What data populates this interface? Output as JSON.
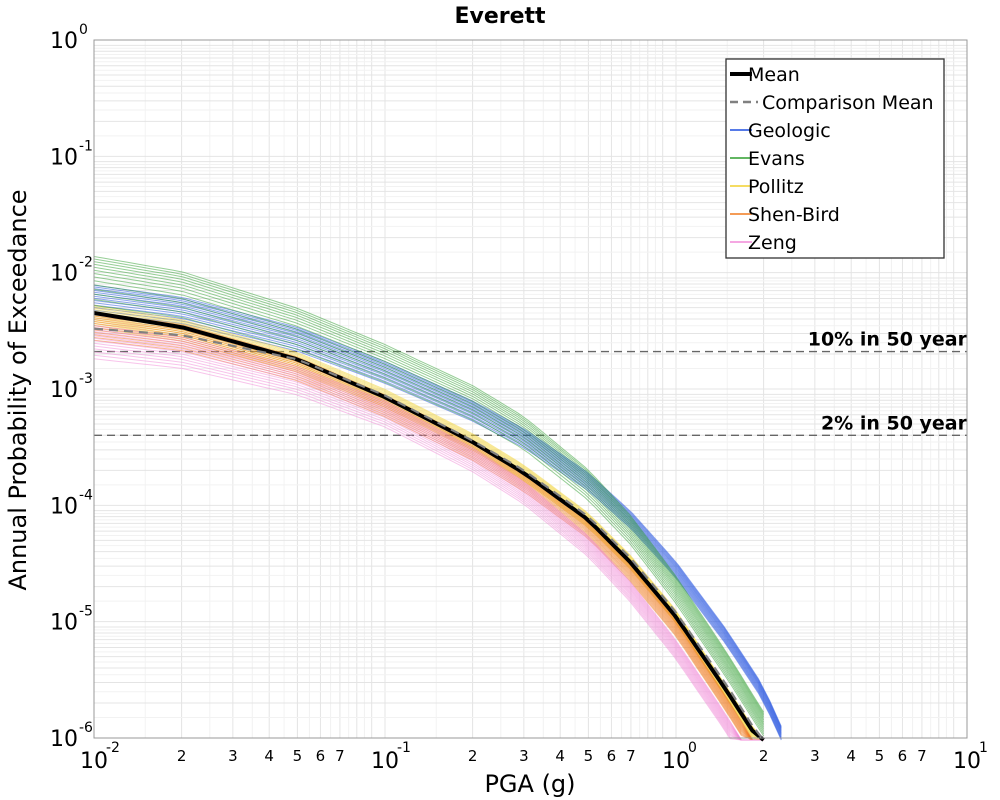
{
  "chart_data": {
    "type": "line",
    "title": "Everett",
    "xlabel": "PGA (g)",
    "ylabel": "Annual Probability of Exceedance",
    "x_scale": "log",
    "y_scale": "log",
    "xlim": [
      0.01,
      10
    ],
    "ylim": [
      1e-06,
      1
    ],
    "grid": true,
    "legend_position": "top-right",
    "x_major_ticks": [
      {
        "value": 0.01,
        "base": "10",
        "exp": "-2"
      },
      {
        "value": 0.1,
        "base": "10",
        "exp": "-1"
      },
      {
        "value": 1,
        "base": "10",
        "exp": "0"
      },
      {
        "value": 10,
        "base": "10",
        "exp": "1"
      }
    ],
    "x_minor_ticks": [
      {
        "value": 0.02,
        "label": "2"
      },
      {
        "value": 0.03,
        "label": "3"
      },
      {
        "value": 0.04,
        "label": "4"
      },
      {
        "value": 0.05,
        "label": "5"
      },
      {
        "value": 0.06,
        "label": "6"
      },
      {
        "value": 0.07,
        "label": "7"
      },
      {
        "value": 0.2,
        "label": "2"
      },
      {
        "value": 0.3,
        "label": "3"
      },
      {
        "value": 0.4,
        "label": "4"
      },
      {
        "value": 0.5,
        "label": "5"
      },
      {
        "value": 0.6,
        "label": "6"
      },
      {
        "value": 0.7,
        "label": "7"
      },
      {
        "value": 2,
        "label": "2"
      },
      {
        "value": 3,
        "label": "3"
      },
      {
        "value": 4,
        "label": "4"
      },
      {
        "value": 5,
        "label": "5"
      },
      {
        "value": 6,
        "label": "6"
      },
      {
        "value": 7,
        "label": "7"
      }
    ],
    "y_major_ticks": [
      {
        "value": 1,
        "base": "10",
        "exp": "0"
      },
      {
        "value": 0.1,
        "base": "10",
        "exp": "-1"
      },
      {
        "value": 0.01,
        "base": "10",
        "exp": "-2"
      },
      {
        "value": 0.001,
        "base": "10",
        "exp": "-3"
      },
      {
        "value": 0.0001,
        "base": "10",
        "exp": "-4"
      },
      {
        "value": 1e-05,
        "base": "10",
        "exp": "-5"
      },
      {
        "value": 1e-06,
        "base": "10",
        "exp": "-6"
      }
    ],
    "reference_lines": [
      {
        "label": "10% in 50 year",
        "y": 0.0021
      },
      {
        "label": "2% in 50 year",
        "y": 0.0004
      }
    ],
    "series": [
      {
        "name": "Mean",
        "color": "#000000",
        "style": "solid-thick",
        "x": [
          0.01,
          0.02,
          0.05,
          0.1,
          0.2,
          0.3,
          0.5,
          0.7,
          1.0,
          1.5,
          2.0
        ],
        "y": [
          0.0045,
          0.0034,
          0.0018,
          0.00085,
          0.00035,
          0.00019,
          7.5e-05,
          3.2e-05,
          1.1e-05,
          2.5e-06,
          8.2e-07
        ]
      },
      {
        "name": "Comparison Mean",
        "color": "#808080",
        "style": "dashed",
        "x": [
          0.01,
          0.02,
          0.05,
          0.1,
          0.2,
          0.3,
          0.5,
          0.7,
          1.0,
          1.5,
          2.0
        ],
        "y": [
          0.0033,
          0.0029,
          0.0018,
          0.00088,
          0.00036,
          0.0002,
          8e-05,
          3.5e-05,
          1.2e-05,
          2.8e-06,
          9e-07
        ]
      },
      {
        "name": "Geologic",
        "color": "#1f4fe0",
        "style": "band",
        "x": [
          0.01,
          0.02,
          0.05,
          0.1,
          0.2,
          0.3,
          0.5,
          0.7,
          1.0,
          1.5,
          2.0,
          2.3
        ],
        "y": [
          0.006,
          0.0048,
          0.0027,
          0.0014,
          0.00065,
          0.00038,
          0.00016,
          7.5e-05,
          2.8e-05,
          7.2e-06,
          2.4e-06,
          1.1e-06
        ]
      },
      {
        "name": "Evans",
        "color": "#2e9e2e",
        "style": "band",
        "x": [
          0.01,
          0.02,
          0.05,
          0.1,
          0.2,
          0.3,
          0.5,
          0.7,
          1.0,
          1.5,
          2.0
        ],
        "y": [
          0.0095,
          0.0072,
          0.0036,
          0.0018,
          0.00082,
          0.00045,
          0.00016,
          6.5e-05,
          2e-05,
          4.4e-06,
          1.4e-06
        ]
      },
      {
        "name": "Pollitz",
        "color": "#f2d12e",
        "style": "band",
        "x": [
          0.01,
          0.02,
          0.05,
          0.1,
          0.2,
          0.3,
          0.5,
          0.7,
          1.0,
          1.5,
          2.0
        ],
        "y": [
          0.0042,
          0.0032,
          0.0017,
          0.00083,
          0.00035,
          0.00019,
          7.4e-05,
          3.2e-05,
          1.1e-05,
          2.4e-06,
          8e-07
        ]
      },
      {
        "name": "Shen-Bird",
        "color": "#f07a1e",
        "style": "band",
        "x": [
          0.01,
          0.02,
          0.05,
          0.1,
          0.2,
          0.3,
          0.5,
          0.7,
          1.0,
          1.5,
          2.0
        ],
        "y": [
          0.0035,
          0.0028,
          0.0015,
          0.00072,
          0.0003,
          0.00016,
          6.2e-05,
          2.6e-05,
          8.8e-06,
          1.9e-06,
          6e-07
        ]
      },
      {
        "name": "Zeng",
        "color": "#f28ad8",
        "style": "band",
        "x": [
          0.01,
          0.02,
          0.05,
          0.1,
          0.2,
          0.3,
          0.5,
          0.7,
          1.0,
          1.5,
          2.0
        ],
        "y": [
          0.0026,
          0.0021,
          0.0012,
          0.00062,
          0.00025,
          0.00013,
          4.5e-05,
          1.8e-05,
          5.8e-06,
          1.3e-06,
          4e-07
        ]
      }
    ]
  }
}
